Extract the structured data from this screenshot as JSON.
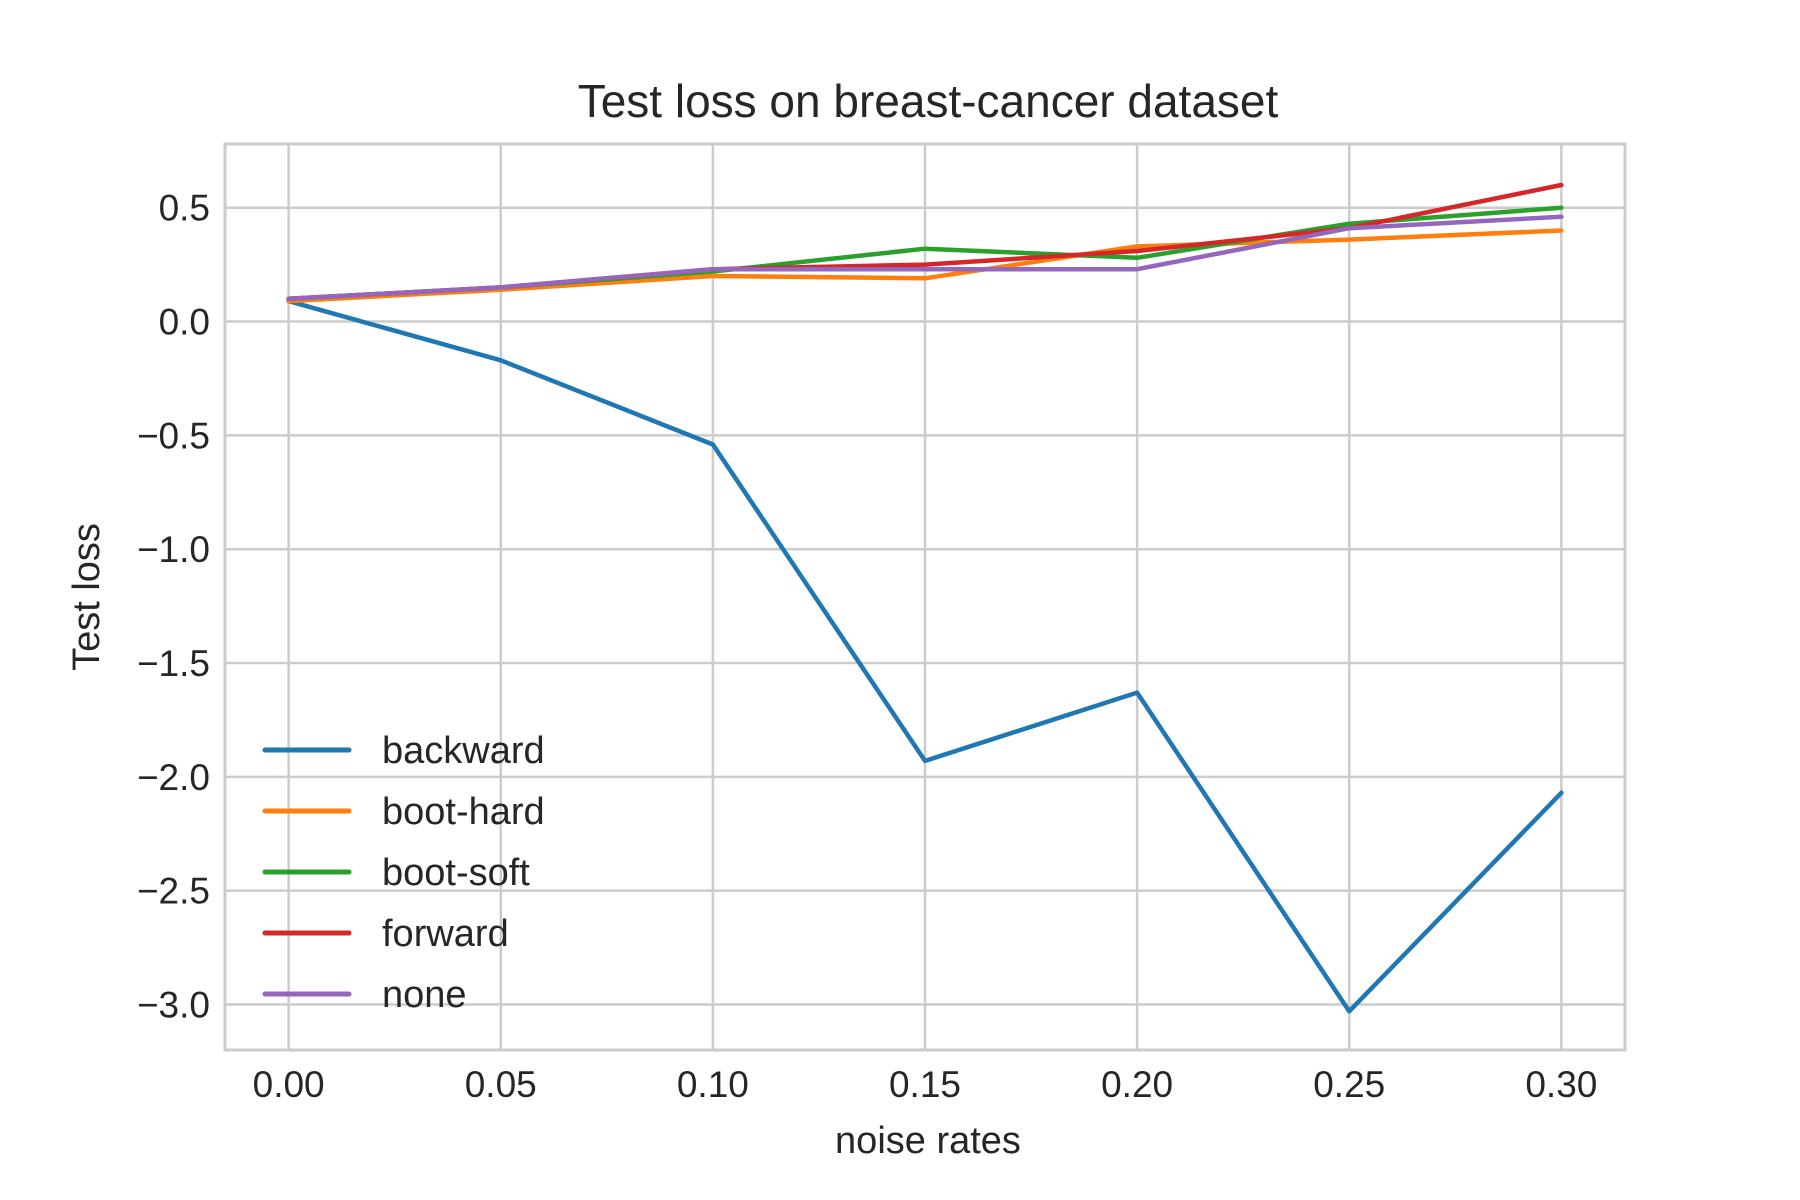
{
  "chart_data": {
    "type": "line",
    "title": "Test loss on breast-cancer dataset",
    "xlabel": "noise rates",
    "ylabel": "Test loss",
    "x": [
      0.0,
      0.05,
      0.1,
      0.15,
      0.2,
      0.25,
      0.3
    ],
    "x_tick_values": [
      0.0,
      0.05,
      0.1,
      0.15,
      0.2,
      0.25,
      0.3
    ],
    "x_tick_labels": [
      "0.00",
      "0.05",
      "0.10",
      "0.15",
      "0.20",
      "0.25",
      "0.30"
    ],
    "y_tick_values": [
      0.5,
      0.0,
      -0.5,
      -1.0,
      -1.5,
      -2.0,
      -2.5,
      -3.0
    ],
    "y_tick_labels": [
      "0.5",
      "0.0",
      "−0.5",
      "−1.0",
      "−1.5",
      "−2.0",
      "−2.5",
      "−3.0"
    ],
    "xlim": [
      -0.015,
      0.315
    ],
    "ylim": [
      -3.2,
      0.78
    ],
    "grid": true,
    "legend_position": "lower-left",
    "series": [
      {
        "name": "backward",
        "color": "#1f77b4",
        "values": [
          0.09,
          -0.17,
          -0.54,
          -1.93,
          -1.63,
          -3.03,
          -2.07
        ]
      },
      {
        "name": "boot-hard",
        "color": "#ff7f0e",
        "values": [
          0.09,
          0.14,
          0.2,
          0.19,
          0.33,
          0.36,
          0.4
        ]
      },
      {
        "name": "boot-soft",
        "color": "#2ca02c",
        "values": [
          0.1,
          0.15,
          0.22,
          0.32,
          0.28,
          0.43,
          0.5
        ]
      },
      {
        "name": "forward",
        "color": "#d62728",
        "values": [
          0.1,
          0.15,
          0.23,
          0.25,
          0.31,
          0.41,
          0.6
        ]
      },
      {
        "name": "none",
        "color": "#9467bd",
        "values": [
          0.1,
          0.15,
          0.23,
          0.23,
          0.23,
          0.41,
          0.46
        ]
      }
    ]
  }
}
